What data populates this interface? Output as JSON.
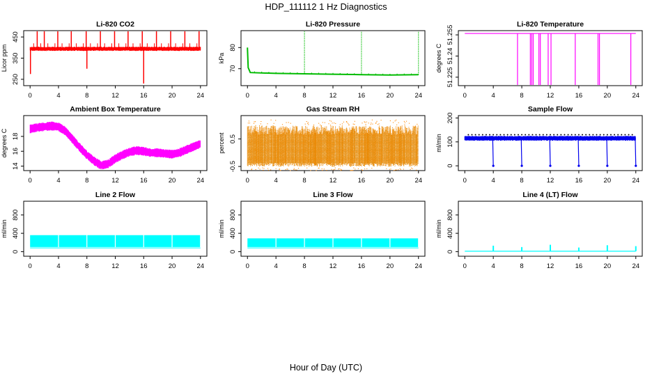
{
  "figure": {
    "title": "HDP_111112  1 Hz Diagnostics",
    "xlabel": "Hour of Day (UTC)"
  },
  "chart_data": [
    {
      "id": "co2",
      "type": "line",
      "title": "Li-820 CO2",
      "ylabel": "Licor ppm",
      "color": "#ff0000",
      "xlim": [
        0,
        24
      ],
      "ylim": [
        220,
        480
      ],
      "yticks": [
        250,
        350,
        450
      ],
      "xticks": [
        0,
        4,
        8,
        12,
        16,
        20,
        24
      ],
      "series": [
        {
          "name": "CO2",
          "base": 395,
          "band_low": 384,
          "band_high": 404,
          "spikes": [
            {
              "x": 0.05,
              "y": 275
            },
            {
              "x": 1.0,
              "y": 480
            },
            {
              "x": 2.0,
              "y": 480
            },
            {
              "x": 3.9,
              "y": 480
            },
            {
              "x": 5.8,
              "y": 480
            },
            {
              "x": 7.9,
              "y": 480
            },
            {
              "x": 8.0,
              "y": 300
            },
            {
              "x": 9.9,
              "y": 480
            },
            {
              "x": 11.9,
              "y": 480
            },
            {
              "x": 13.8,
              "y": 480
            },
            {
              "x": 15.8,
              "y": 480
            },
            {
              "x": 16.0,
              "y": 230
            },
            {
              "x": 17.8,
              "y": 480
            },
            {
              "x": 19.8,
              "y": 480
            },
            {
              "x": 21.8,
              "y": 480
            },
            {
              "x": 23.8,
              "y": 480
            }
          ]
        }
      ]
    },
    {
      "id": "pressure",
      "type": "line",
      "title": "Li-820 Pressure",
      "ylabel": "kPa",
      "color": "#00bb00",
      "xlim": [
        0,
        24
      ],
      "ylim": [
        62,
        88
      ],
      "yticks": [
        70,
        80
      ],
      "xticks": [
        0,
        4,
        8,
        12,
        16,
        20,
        24
      ],
      "series": [
        {
          "name": "Pressure",
          "points": [
            [
              0,
              80
            ],
            [
              0.1,
              70.5
            ],
            [
              0.4,
              68.2
            ],
            [
              4,
              67.8
            ],
            [
              8,
              67.6
            ],
            [
              12,
              67.4
            ],
            [
              16,
              67.2
            ],
            [
              20,
              67.0
            ],
            [
              24,
              67.2
            ]
          ],
          "spikes": [
            {
              "x": 8.0,
              "y": 88
            },
            {
              "x": 16.0,
              "y": 88
            },
            {
              "x": 24.0,
              "y": 88
            }
          ]
        }
      ]
    },
    {
      "id": "temperature",
      "type": "line",
      "title": "Li-820 Temperature",
      "ylabel": "degrees C",
      "color": "#ff00ff",
      "xlim": [
        0,
        24
      ],
      "ylim": [
        51.219,
        51.258
      ],
      "yticks": [
        51.225,
        51.24,
        51.255
      ],
      "xticks": [
        0,
        4,
        8,
        12,
        16,
        20,
        24
      ],
      "series": [
        {
          "name": "Temperature",
          "base": 51.256,
          "dropouts": [
            7.4,
            9.2,
            9.4,
            9.6,
            10.4,
            10.6,
            11.7,
            12.1,
            15.5,
            18.7,
            18.9,
            23.3
          ]
        }
      ]
    },
    {
      "id": "ambient",
      "type": "line",
      "title": "Ambient Box Temperature",
      "ylabel": "degrees C",
      "color": "#ff00ff",
      "xlim": [
        0,
        24
      ],
      "ylim": [
        13.4,
        20.8
      ],
      "yticks": [
        14,
        16,
        18
      ],
      "xticks": [
        0,
        4,
        8,
        12,
        16,
        20,
        24
      ],
      "series": [
        {
          "name": "Ambient",
          "points": [
            [
              0,
              19.0
            ],
            [
              1,
              19.2
            ],
            [
              2,
              19.3
            ],
            [
              3,
              19.4
            ],
            [
              4,
              19.3
            ],
            [
              5,
              18.7
            ],
            [
              6,
              17.6
            ],
            [
              7,
              16.5
            ],
            [
              8,
              15.5
            ],
            [
              9,
              14.7
            ],
            [
              10,
              14.1
            ],
            [
              11,
              14.3
            ],
            [
              12,
              15.0
            ],
            [
              13,
              15.5
            ],
            [
              14,
              15.9
            ],
            [
              15,
              16.1
            ],
            [
              16,
              16.0
            ],
            [
              17,
              15.8
            ],
            [
              18,
              15.8
            ],
            [
              19,
              15.7
            ],
            [
              20,
              15.6
            ],
            [
              21,
              15.8
            ],
            [
              22,
              16.2
            ],
            [
              23,
              16.6
            ],
            [
              24,
              17.0
            ]
          ],
          "noise": 0.6
        }
      ]
    },
    {
      "id": "rh",
      "type": "scatter",
      "title": "Gas Stream RH",
      "ylabel": "percent",
      "color": "#ff8800",
      "color2": "#888800",
      "xlim": [
        0,
        24
      ],
      "ylim": [
        -0.65,
        1.35
      ],
      "yticks": [
        -0.5,
        0.5
      ],
      "xticks": [
        0,
        4,
        8,
        12,
        16,
        20,
        24
      ],
      "series": [
        {
          "name": "RH",
          "band_low": -0.5,
          "band_high": 1.0,
          "outer_low": -0.65,
          "outer_high": 1.2
        }
      ]
    },
    {
      "id": "sample",
      "type": "line",
      "title": "Sample Flow",
      "ylabel": "ml/min",
      "color": "#0000ee",
      "xlim": [
        0,
        24
      ],
      "ylim": [
        -20,
        210
      ],
      "yticks": [
        0,
        100,
        200
      ],
      "xticks": [
        0,
        4,
        8,
        12,
        16,
        20,
        24
      ],
      "series": [
        {
          "name": "Sample",
          "base": 113,
          "band_low": 105,
          "band_high": 125,
          "dropouts": [
            4.0,
            8.0,
            12.0,
            16.0,
            20.0,
            24.0
          ]
        }
      ]
    },
    {
      "id": "line2",
      "type": "line",
      "title": "Line 2 Flow",
      "ylabel": "ml/min",
      "color": "#00ffff",
      "xlim": [
        0,
        24
      ],
      "ylim": [
        -100,
        1100
      ],
      "yticks": [
        0,
        400,
        800
      ],
      "xticks": [
        0,
        4,
        8,
        12,
        16,
        20,
        24
      ],
      "series": [
        {
          "name": "Line 2",
          "band_low": 100,
          "band_high": 360,
          "gaps": [
            4.0,
            8.0,
            12.0,
            16.0,
            20.0,
            24.0
          ]
        }
      ]
    },
    {
      "id": "line3",
      "type": "line",
      "title": "Line 3 Flow",
      "ylabel": "ml/min",
      "color": "#00ffff",
      "xlim": [
        0,
        24
      ],
      "ylim": [
        -100,
        1100
      ],
      "yticks": [
        0,
        400,
        800
      ],
      "xticks": [
        0,
        4,
        8,
        12,
        16,
        20,
        24
      ],
      "series": [
        {
          "name": "Line 3",
          "band_low": 100,
          "band_high": 290,
          "gaps": [
            4.0,
            8.0,
            12.0,
            16.0,
            20.0,
            24.0
          ]
        }
      ]
    },
    {
      "id": "line4",
      "type": "line",
      "title": "Line 4 (LT) Flow",
      "ylabel": "ml/min",
      "color": "#00ffff",
      "xlim": [
        0,
        24
      ],
      "ylim": [
        -100,
        1100
      ],
      "yticks": [
        0,
        400,
        800
      ],
      "xticks": [
        0,
        4,
        8,
        12,
        16,
        20,
        24
      ],
      "series": [
        {
          "name": "Line 4",
          "base": 10,
          "spikes": [
            {
              "x": 4.0,
              "y": 130
            },
            {
              "x": 8.0,
              "y": 100
            },
            {
              "x": 12.0,
              "y": 150
            },
            {
              "x": 16.0,
              "y": 90
            },
            {
              "x": 20.0,
              "y": 140
            },
            {
              "x": 24.0,
              "y": 120
            }
          ]
        }
      ]
    }
  ]
}
